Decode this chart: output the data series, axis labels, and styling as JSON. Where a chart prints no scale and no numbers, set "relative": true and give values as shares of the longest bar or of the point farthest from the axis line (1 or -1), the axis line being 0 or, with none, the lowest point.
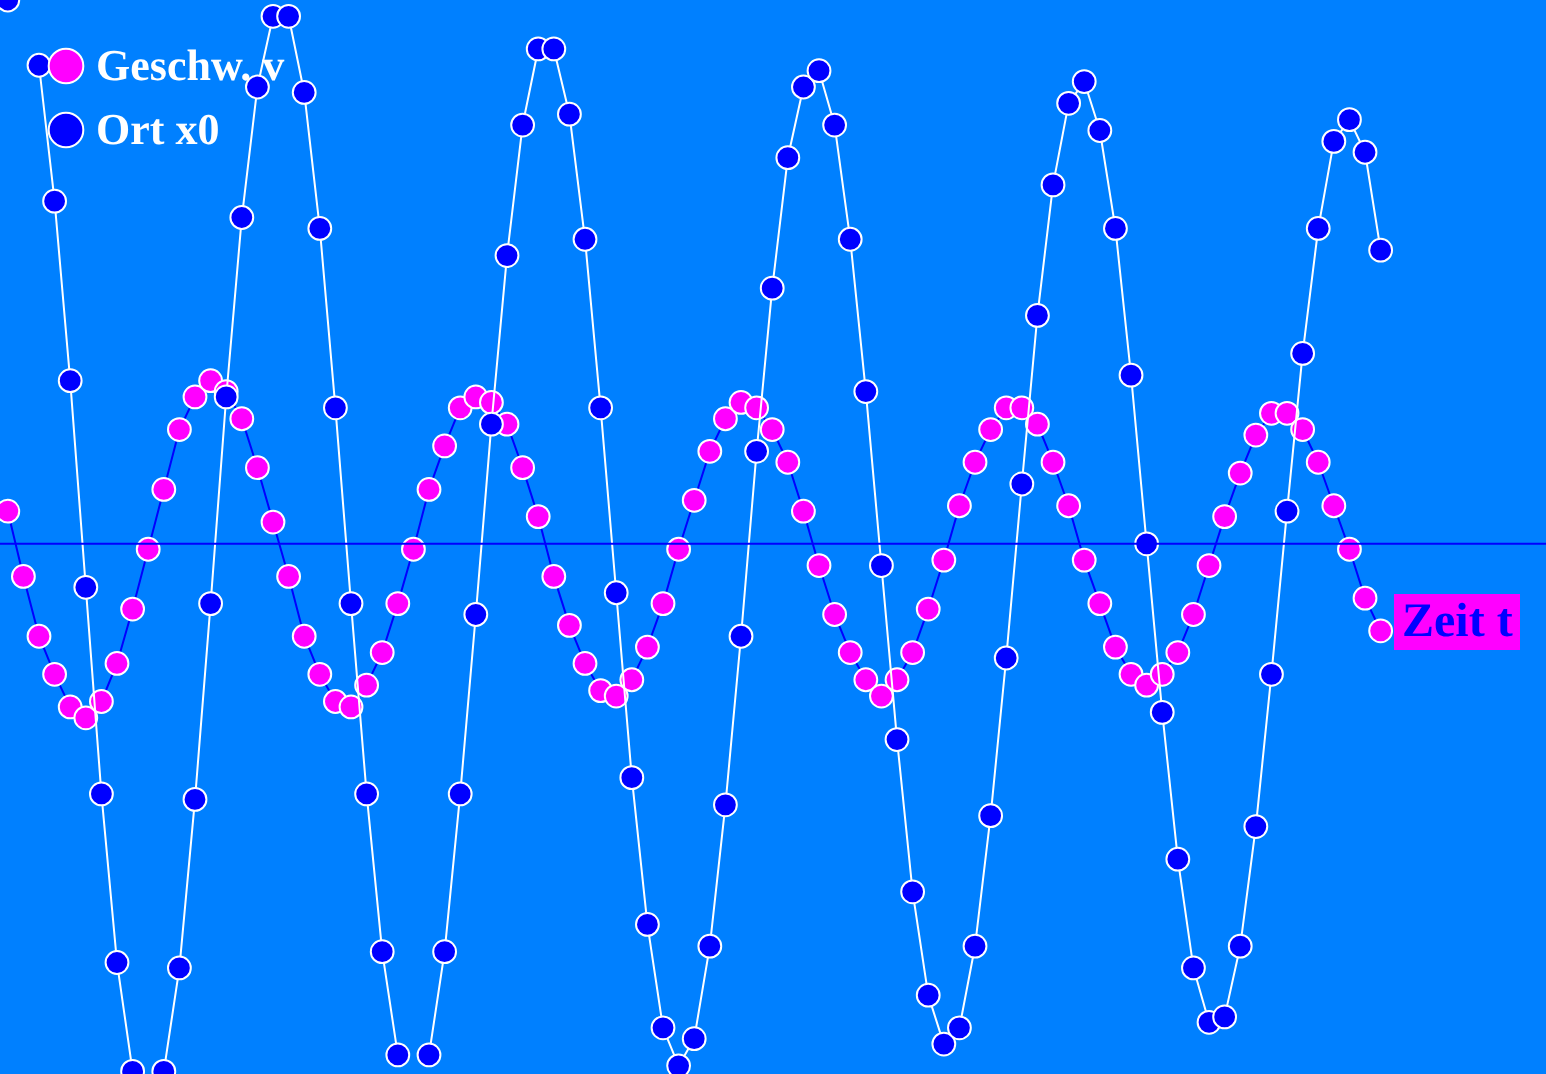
{
  "chart_data": {
    "type": "line",
    "relative": true,
    "marker": "circle",
    "legend": "top left",
    "ref_lines": [
      {
        "axis": "y",
        "value": 0,
        "color": "#0000ff"
      }
    ],
    "xlabel": "Zeit t",
    "categories": [
      null,
      null,
      null,
      null,
      null,
      null,
      null,
      null,
      null,
      null,
      null,
      null,
      null,
      null,
      null,
      null,
      null,
      null,
      null,
      null,
      null,
      null,
      null,
      null,
      null,
      null,
      null,
      null,
      null,
      null,
      null,
      null,
      null,
      null,
      null,
      null,
      null,
      null,
      null,
      null,
      null,
      null,
      null,
      null,
      null,
      null,
      null,
      null,
      null,
      null,
      null,
      null,
      null,
      null,
      null,
      null,
      null,
      null,
      null,
      null,
      null,
      null,
      null,
      null,
      null,
      null,
      null,
      null,
      null,
      null,
      null,
      null,
      null,
      null,
      null,
      null,
      null,
      null,
      null,
      null,
      null,
      null,
      null,
      null,
      null,
      null,
      null,
      null,
      null
    ],
    "series": [
      {
        "name": "Geschw. v",
        "color": "#ff00ff",
        "values": [
          0.06,
          -0.06,
          -0.17,
          -0.24,
          -0.3,
          -0.32,
          -0.29,
          -0.22,
          -0.12,
          -0.01,
          0.1,
          0.21,
          0.27,
          0.3,
          0.28,
          0.23,
          0.14,
          0.04,
          -0.06,
          -0.17,
          -0.24,
          -0.29,
          -0.3,
          -0.26,
          -0.2,
          -0.11,
          -0.01,
          0.1,
          0.18,
          0.25,
          0.27,
          0.26,
          0.22,
          0.14,
          0.05,
          -0.06,
          -0.15,
          -0.22,
          -0.27,
          -0.28,
          -0.25,
          -0.19,
          -0.11,
          -0.01,
          0.08,
          0.17,
          0.23,
          0.26,
          0.25,
          0.21,
          0.15,
          0.06,
          -0.04,
          -0.13,
          -0.2,
          -0.25,
          -0.28,
          -0.25,
          -0.2,
          -0.12,
          -0.03,
          0.07,
          0.15,
          0.21,
          0.25,
          0.25,
          0.22,
          0.15,
          0.07,
          -0.03,
          -0.11,
          -0.19,
          -0.24,
          -0.26,
          -0.24,
          -0.2,
          -0.13,
          -0.04,
          0.05,
          0.13,
          0.2,
          0.24,
          0.24,
          0.21,
          0.15,
          0.07,
          -0.01,
          -0.1,
          -0.16
        ]
      },
      {
        "name": "Ort x0",
        "color": "#0000ff",
        "values": [
          1.0,
          null,
          0.88,
          0.63,
          0.3,
          -0.08,
          -0.46,
          -0.77,
          -0.97,
          null,
          -0.97,
          -0.78,
          -0.47,
          -0.11,
          0.27,
          0.6,
          0.84,
          0.97,
          0.97,
          0.83,
          0.58,
          0.25,
          -0.11,
          -0.46,
          -0.75,
          -0.94,
          null,
          -0.94,
          -0.75,
          -0.46,
          -0.13,
          0.22,
          0.53,
          0.77,
          0.91,
          0.91,
          0.79,
          0.56,
          0.25,
          -0.09,
          -0.43,
          -0.7,
          -0.89,
          -0.96,
          -0.91,
          -0.74,
          -0.48,
          -0.17,
          0.17,
          0.47,
          0.71,
          0.84,
          0.87,
          0.77,
          0.56,
          0.28,
          -0.04,
          -0.36,
          -0.64,
          -0.83,
          -0.92,
          -0.89,
          -0.74,
          -0.5,
          -0.21,
          0.11,
          0.42,
          0.66,
          0.81,
          0.85,
          0.76,
          0.58,
          0.31,
          0.0,
          -0.31,
          -0.58,
          -0.78,
          -0.88,
          -0.87,
          -0.74,
          -0.52,
          -0.24,
          0.06,
          0.35,
          0.58,
          0.74,
          0.78,
          0.72,
          0.54
        ]
      }
    ]
  }
}
